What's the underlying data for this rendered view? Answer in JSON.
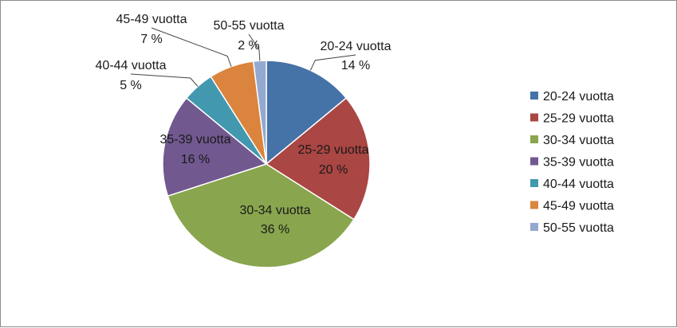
{
  "chart_data": {
    "type": "pie",
    "categories": [
      "20-24 vuotta",
      "25-29 vuotta",
      "30-34 vuotta",
      "35-39 vuotta",
      "40-44 vuotta",
      "45-49 vuotta",
      "50-55 vuotta"
    ],
    "values": [
      14,
      20,
      36,
      16,
      5,
      7,
      2
    ],
    "value_labels": [
      "14 %",
      "20 %",
      "36 %",
      "16 %",
      "5 %",
      "7 %",
      "2 %"
    ],
    "colors": [
      "#4572A7",
      "#AA4643",
      "#89A54E",
      "#71588F",
      "#4198AF",
      "#DB843D",
      "#93A9CF"
    ],
    "legend_position": "right",
    "start_angle": "12 o'clock",
    "direction": "clockwise",
    "title": ""
  }
}
